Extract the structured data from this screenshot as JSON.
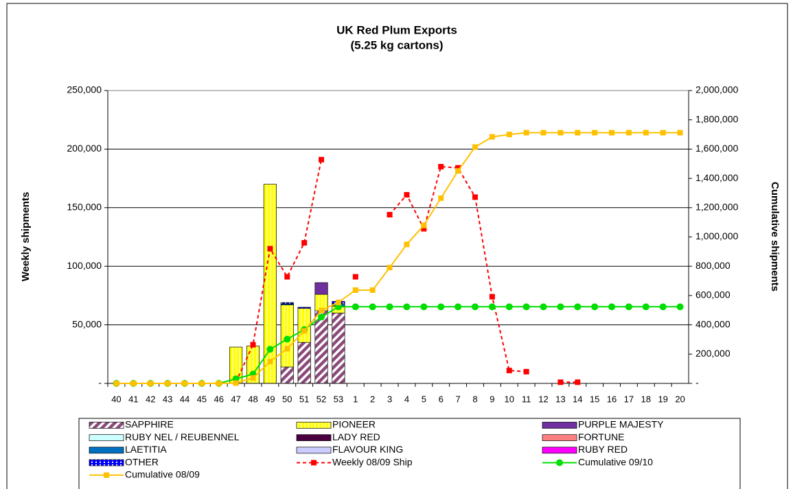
{
  "chart_data": {
    "type": "bar",
    "title": "UK Red Plum Exports",
    "subtitle": "(5.25 kg cartons)",
    "y_label": "Weekly shipments",
    "y2_label": "Cumulative shipments",
    "categories": [
      "40",
      "41",
      "42",
      "43",
      "44",
      "45",
      "46",
      "47",
      "48",
      "49",
      "50",
      "51",
      "52",
      "53",
      "1",
      "2",
      "3",
      "4",
      "5",
      "6",
      "7",
      "8",
      "9",
      "10",
      "11",
      "12",
      "13",
      "14",
      "15",
      "16",
      "17",
      "18",
      "19",
      "20"
    ],
    "ylim": [
      0,
      250000
    ],
    "yticks": [
      {
        "value": 0,
        "label": "-"
      },
      {
        "value": 50000,
        "label": "50,000"
      },
      {
        "value": 100000,
        "label": "100,000"
      },
      {
        "value": 150000,
        "label": "150,000"
      },
      {
        "value": 200000,
        "label": "200,000"
      },
      {
        "value": 250000,
        "label": "250,000"
      }
    ],
    "y2lim": [
      0,
      2000000
    ],
    "y2ticks": [
      {
        "value": 0,
        "label": "-"
      },
      {
        "value": 200000,
        "label": "200,000"
      },
      {
        "value": 400000,
        "label": "400,000"
      },
      {
        "value": 600000,
        "label": "600,000"
      },
      {
        "value": 800000,
        "label": "800,000"
      },
      {
        "value": 1000000,
        "label": "1,000,000"
      },
      {
        "value": 1200000,
        "label": "1,200,000"
      },
      {
        "value": 1400000,
        "label": "1,400,000"
      },
      {
        "value": 1600000,
        "label": "1,600,000"
      },
      {
        "value": 1800000,
        "label": "1,800,000"
      },
      {
        "value": 2000000,
        "label": "2,000,000"
      }
    ],
    "grid": true,
    "legend": "bottom",
    "series": [
      {
        "name": "SAPPHIRE",
        "type": "bar",
        "color": "#8b4a7a",
        "pattern": "hatch",
        "values": [
          0,
          0,
          0,
          0,
          0,
          0,
          0,
          0,
          0,
          0,
          14000,
          35000,
          62000,
          60000,
          null,
          null,
          null,
          null,
          null,
          null,
          null,
          null,
          null,
          null,
          null,
          null,
          null,
          null,
          null,
          null,
          null,
          null,
          null,
          null
        ]
      },
      {
        "name": "PIONEER",
        "type": "bar",
        "color": "#ffff00",
        "pattern": "stripes",
        "values": [
          0,
          0,
          0,
          0,
          0,
          0,
          0,
          31000,
          32000,
          170000,
          53000,
          29000,
          14000,
          6000,
          null,
          null,
          null,
          null,
          null,
          null,
          null,
          null,
          null,
          null,
          null,
          null,
          null,
          null,
          null,
          null,
          null,
          null,
          null,
          null
        ]
      },
      {
        "name": "PURPLE MAJESTY",
        "type": "bar",
        "color": "#7030a0",
        "values": [
          0,
          0,
          0,
          0,
          0,
          0,
          0,
          0,
          0,
          0,
          0,
          0,
          10000,
          0,
          null,
          null,
          null,
          null,
          null,
          null,
          null,
          null,
          null,
          null,
          null,
          null,
          null,
          null,
          null,
          null,
          null,
          null,
          null,
          null
        ]
      },
      {
        "name": "RUBY NEL / REUBENNEL",
        "type": "bar",
        "color": "#ccffff",
        "values": [
          0,
          0,
          0,
          0,
          0,
          0,
          0,
          0,
          0,
          0,
          0,
          0,
          0,
          0,
          null,
          null,
          null,
          null,
          null,
          null,
          null,
          null,
          null,
          null,
          null,
          null,
          null,
          null,
          null,
          null,
          null,
          null,
          null,
          null
        ]
      },
      {
        "name": "LADY RED",
        "type": "bar",
        "color": "#4b0040",
        "values": [
          0,
          0,
          0,
          0,
          0,
          0,
          0,
          0,
          0,
          0,
          0,
          0,
          0,
          0,
          null,
          null,
          null,
          null,
          null,
          null,
          null,
          null,
          null,
          null,
          null,
          null,
          null,
          null,
          null,
          null,
          null,
          null,
          null,
          null
        ]
      },
      {
        "name": "FORTUNE",
        "type": "bar",
        "color": "#ff8080",
        "values": [
          0,
          0,
          0,
          0,
          0,
          0,
          0,
          0,
          0,
          0,
          0,
          0,
          0,
          0,
          null,
          null,
          null,
          null,
          null,
          null,
          null,
          null,
          null,
          null,
          null,
          null,
          null,
          null,
          null,
          null,
          null,
          null,
          null,
          null
        ]
      },
      {
        "name": "LAETITIA",
        "type": "bar",
        "color": "#0070c0",
        "values": [
          0,
          0,
          0,
          0,
          0,
          0,
          0,
          0,
          0,
          0,
          1000,
          0,
          0,
          2000,
          null,
          null,
          null,
          null,
          null,
          null,
          null,
          null,
          null,
          null,
          null,
          null,
          null,
          null,
          null,
          null,
          null,
          null,
          null,
          null
        ]
      },
      {
        "name": "FLAVOUR KING",
        "type": "bar",
        "color": "#ccccff",
        "values": [
          0,
          0,
          0,
          0,
          0,
          0,
          0,
          0,
          0,
          0,
          0,
          0,
          0,
          0,
          null,
          null,
          null,
          null,
          null,
          null,
          null,
          null,
          null,
          null,
          null,
          null,
          null,
          null,
          null,
          null,
          null,
          null,
          null,
          null
        ]
      },
      {
        "name": "RUBY RED",
        "type": "bar",
        "color": "#ff00ff",
        "values": [
          0,
          0,
          0,
          0,
          0,
          0,
          0,
          0,
          0,
          0,
          0,
          0,
          0,
          0,
          null,
          null,
          null,
          null,
          null,
          null,
          null,
          null,
          null,
          null,
          null,
          null,
          null,
          null,
          null,
          null,
          null,
          null,
          null,
          null
        ]
      },
      {
        "name": "OTHER",
        "type": "bar",
        "color": "#0000ff",
        "pattern": "dots",
        "values": [
          0,
          0,
          0,
          0,
          0,
          0,
          0,
          0,
          0,
          0,
          1000,
          1000,
          0,
          2000,
          null,
          null,
          null,
          null,
          null,
          null,
          null,
          null,
          null,
          null,
          null,
          null,
          null,
          null,
          null,
          null,
          null,
          null,
          null,
          null
        ]
      },
      {
        "name": "Weekly 08/09 Ship",
        "type": "line",
        "color": "#ff0000",
        "dash": true,
        "marker": "square",
        "values": [
          null,
          null,
          null,
          null,
          null,
          null,
          null,
          1000,
          33000,
          115000,
          91000,
          120000,
          191000,
          null,
          91000,
          null,
          144000,
          161000,
          132000,
          185000,
          184000,
          159000,
          74000,
          11000,
          10000,
          null,
          1000,
          1000,
          null,
          null,
          null,
          null,
          null,
          null
        ]
      },
      {
        "name": "Cumulative 09/10",
        "type": "line",
        "color": "#00dd00",
        "marker": "circle",
        "axis": "y2",
        "values": [
          0,
          0,
          0,
          0,
          0,
          0,
          0,
          31000,
          63000,
          233000,
          302000,
          367000,
          453000,
          523000,
          523000,
          523000,
          523000,
          523000,
          523000,
          523000,
          523000,
          523000,
          523000,
          523000,
          523000,
          523000,
          523000,
          523000,
          523000,
          523000,
          523000,
          523000,
          523000,
          523000
        ]
      },
      {
        "name": "Cumulative 08/09",
        "type": "line",
        "color": "#ffc000",
        "marker": "square",
        "axis": "y2",
        "values": [
          0,
          0,
          0,
          0,
          0,
          0,
          0,
          2000,
          37000,
          149000,
          237000,
          358000,
          498000,
          553000,
          637000,
          637000,
          791000,
          949000,
          1079000,
          1265000,
          1451000,
          1614000,
          1684000,
          1700000,
          1712000,
          1712000,
          1712000,
          1712000,
          1712000,
          1712000,
          1712000,
          1712000,
          1712000,
          1712000
        ]
      }
    ]
  }
}
